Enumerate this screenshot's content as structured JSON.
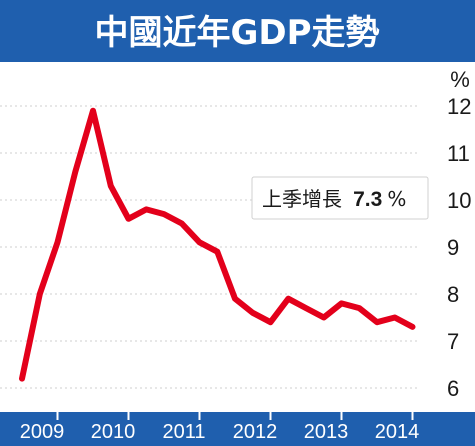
{
  "chart_data": {
    "type": "line",
    "title": "中國近年GDP走勢",
    "unit": "%",
    "ylim": [
      6,
      12
    ],
    "yticks": [
      6,
      7,
      8,
      9,
      10,
      11,
      12
    ],
    "xlim": [
      2009,
      2015
    ],
    "xticks": [
      "2009",
      "2010",
      "2011",
      "2012",
      "2013",
      "2014"
    ],
    "grid": true,
    "series": [
      {
        "color": "#e3001b",
        "points": [
          {
            "x": 2009.0,
            "y": 6.2
          },
          {
            "x": 2009.25,
            "y": 8.0
          },
          {
            "x": 2009.5,
            "y": 9.1
          },
          {
            "x": 2009.75,
            "y": 10.6
          },
          {
            "x": 2010.0,
            "y": 11.9
          },
          {
            "x": 2010.25,
            "y": 10.3
          },
          {
            "x": 2010.5,
            "y": 9.6
          },
          {
            "x": 2010.75,
            "y": 9.8
          },
          {
            "x": 2011.0,
            "y": 9.7
          },
          {
            "x": 2011.25,
            "y": 9.5
          },
          {
            "x": 2011.5,
            "y": 9.1
          },
          {
            "x": 2011.75,
            "y": 8.9
          },
          {
            "x": 2012.0,
            "y": 7.9
          },
          {
            "x": 2012.25,
            "y": 7.6
          },
          {
            "x": 2012.5,
            "y": 7.4
          },
          {
            "x": 2012.75,
            "y": 7.9
          },
          {
            "x": 2013.0,
            "y": 7.7
          },
          {
            "x": 2013.25,
            "y": 7.5
          },
          {
            "x": 2013.5,
            "y": 7.8
          },
          {
            "x": 2013.75,
            "y": 7.7
          },
          {
            "x": 2014.0,
            "y": 7.4
          },
          {
            "x": 2014.25,
            "y": 7.5
          },
          {
            "x": 2014.5,
            "y": 7.3
          }
        ]
      }
    ],
    "annotation": {
      "label": "上季增長",
      "value": "7.3",
      "suffix": "%"
    }
  }
}
